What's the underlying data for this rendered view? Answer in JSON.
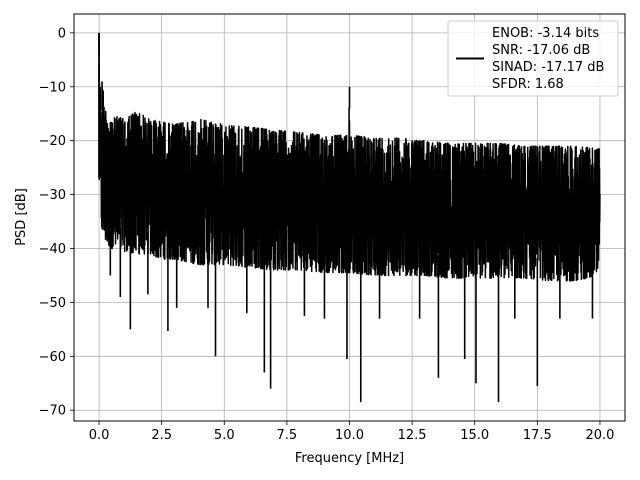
{
  "chart_data": {
    "type": "line",
    "title": "",
    "xlabel": "Frequency [MHz]",
    "ylabel": "PSD [dB]",
    "xlim": [
      -1.0,
      21.0
    ],
    "ylim": [
      -72.0,
      3.5
    ],
    "xticks": [
      0.0,
      2.5,
      5.0,
      7.5,
      10.0,
      12.5,
      15.0,
      17.5,
      20.0
    ],
    "xtick_labels": [
      "0.0",
      "2.5",
      "5.0",
      "7.5",
      "10.0",
      "12.5",
      "15.0",
      "17.5",
      "20.0"
    ],
    "yticks": [
      0,
      -10,
      -20,
      -30,
      -40,
      -50,
      -60,
      -70
    ],
    "ytick_labels": [
      "0",
      "−10",
      "−20",
      "−30",
      "−40",
      "−50",
      "−60",
      "−70"
    ],
    "grid": true,
    "legend_position": "top-right",
    "line_color": "#000000",
    "legend_entries": [
      "ENOB: -3.14 bits",
      "SNR: -17.06 dB",
      "SINAD: -17.17 dB",
      "SFDR: 1.68"
    ],
    "series": [
      {
        "values_description_upper": "approx upper envelope, dB",
        "x": [
          0.0,
          0.02,
          0.05,
          0.1,
          0.15,
          0.2,
          0.3,
          0.4,
          0.5,
          0.75,
          1.0,
          1.5,
          2.0,
          2.5,
          3.0,
          4.0,
          5.0,
          6.0,
          7.0,
          8.0,
          9.0,
          9.95,
          10.0,
          10.05,
          11.0,
          12.0,
          13.0,
          14.0,
          15.0,
          16.0,
          17.0,
          18.0,
          19.0,
          20.0
        ],
        "upper": [
          0.0,
          -5.0,
          -10.0,
          -11.0,
          -9.5,
          -13.0,
          -15.0,
          -14.0,
          -16.0,
          -15.5,
          -16.0,
          -14.5,
          -16.0,
          -16.5,
          -17.0,
          -16.0,
          -17.0,
          -17.5,
          -18.0,
          -18.5,
          -19.0,
          -19.0,
          -10.0,
          -19.0,
          -19.5,
          -19.5,
          -20.0,
          -20.5,
          -20.5,
          -20.5,
          -21.0,
          -21.0,
          -21.0,
          -21.5
        ],
        "lower": [
          -27.0,
          -30.0,
          -33.0,
          -36.0,
          -38.0,
          -38.0,
          -39.0,
          -39.5,
          -40.0,
          -40.0,
          -40.5,
          -41.0,
          -41.0,
          -42.0,
          -42.0,
          -43.0,
          -43.0,
          -43.5,
          -44.0,
          -44.0,
          -44.5,
          -44.5,
          -44.5,
          -44.5,
          -45.0,
          -45.0,
          -45.0,
          -45.5,
          -45.5,
          -45.5,
          -45.5,
          -46.0,
          -46.0,
          -45.0
        ]
      }
    ],
    "deep_dips": [
      {
        "x": 0.45,
        "y": -45.0
      },
      {
        "x": 0.85,
        "y": -49.0
      },
      {
        "x": 1.25,
        "y": -55.0
      },
      {
        "x": 1.95,
        "y": -48.5
      },
      {
        "x": 2.75,
        "y": -55.3
      },
      {
        "x": 3.1,
        "y": -51.0
      },
      {
        "x": 4.35,
        "y": -51.0
      },
      {
        "x": 4.65,
        "y": -60.0
      },
      {
        "x": 5.9,
        "y": -52.0
      },
      {
        "x": 6.6,
        "y": -63.0
      },
      {
        "x": 6.85,
        "y": -66.0
      },
      {
        "x": 8.2,
        "y": -52.5
      },
      {
        "x": 9.0,
        "y": -53.0
      },
      {
        "x": 9.9,
        "y": -60.5
      },
      {
        "x": 10.45,
        "y": -68.5
      },
      {
        "x": 11.2,
        "y": -53.0
      },
      {
        "x": 12.8,
        "y": -53.0
      },
      {
        "x": 13.55,
        "y": -64.0
      },
      {
        "x": 14.6,
        "y": -60.5
      },
      {
        "x": 15.05,
        "y": -65.0
      },
      {
        "x": 15.95,
        "y": -68.5
      },
      {
        "x": 16.6,
        "y": -53.0
      },
      {
        "x": 17.5,
        "y": -65.5
      },
      {
        "x": 18.4,
        "y": -53.0
      },
      {
        "x": 19.7,
        "y": -53.0
      }
    ],
    "peaks": [
      {
        "x": 0.0,
        "y": 0.0
      },
      {
        "x": 0.05,
        "y": -10.0
      },
      {
        "x": 0.12,
        "y": -9.0
      },
      {
        "x": 10.0,
        "y": -10.0
      }
    ]
  }
}
